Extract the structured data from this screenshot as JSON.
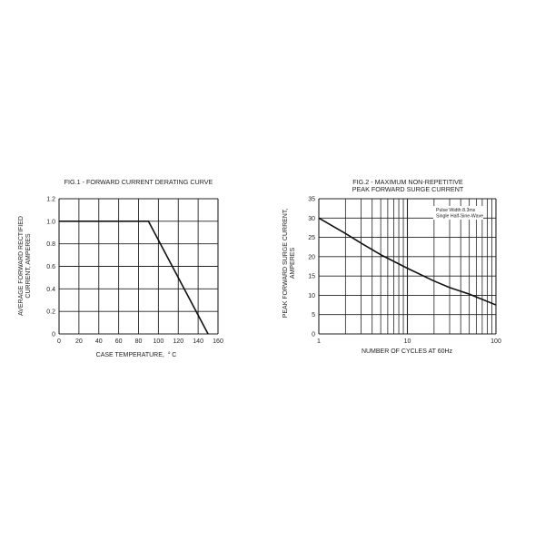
{
  "chart_data": [
    {
      "type": "line",
      "title": "FIG.1 - FORWARD CURRENT DERATING CURVE",
      "xlabel_main": "CASE TEMPERATURE,",
      "xlabel_unit_sup": "o",
      "xlabel_unit": "C",
      "ylabel_lines": [
        "AVERAGE FORWARD RECTIFIED",
        "CURRENT, AMPERES"
      ],
      "xlim": [
        0,
        160
      ],
      "ylim": [
        0,
        1.2
      ],
      "x_ticks": [
        0,
        20,
        40,
        60,
        80,
        100,
        120,
        140,
        160
      ],
      "y_ticks": [
        0,
        0.2,
        0.4,
        0.6,
        0.8,
        1.0,
        1.2
      ],
      "x_tick_labels": [
        "0",
        "20",
        "40",
        "60",
        "80",
        "100",
        "120",
        "140",
        "160"
      ],
      "y_tick_labels": [
        "0",
        "0.2",
        "0.4",
        "0.6",
        "0.8",
        "1.0",
        "1.2"
      ],
      "grid": true,
      "series": [
        {
          "x": [
            0,
            90,
            150
          ],
          "y": [
            1.0,
            1.0,
            0
          ]
        }
      ]
    },
    {
      "type": "line",
      "title_lines": [
        "FIG.2 - MAXIMUM NON-REPETITIVE",
        "PEAK FORWARD SURGE CURRENT"
      ],
      "xlabel": "NUMBER OF CYCLES AT 60Hz",
      "ylabel_lines": [
        "PEAK FORWARD SURGE CURRENT,",
        "AMPERES"
      ],
      "x_scale": "log",
      "xlim": [
        1,
        100
      ],
      "ylim": [
        0,
        35
      ],
      "x_tick_labels": [
        "1",
        "10",
        "100"
      ],
      "x_tick_values": [
        1,
        10,
        100
      ],
      "y_ticks": [
        0,
        5,
        10,
        15,
        20,
        25,
        30,
        35
      ],
      "y_tick_labels": [
        "0",
        "5",
        "10",
        "15",
        "20",
        "25",
        "30",
        "35"
      ],
      "grid": true,
      "annotation_lines": [
        "Pulse Width 8.3ms",
        "Single Half-Sine-Wave"
      ],
      "series": [
        {
          "x": [
            1,
            2,
            3,
            5,
            10,
            20,
            30,
            50,
            100
          ],
          "y": [
            30,
            26,
            23.5,
            20.5,
            17,
            13.7,
            12,
            10.3,
            7.5
          ]
        }
      ]
    }
  ]
}
